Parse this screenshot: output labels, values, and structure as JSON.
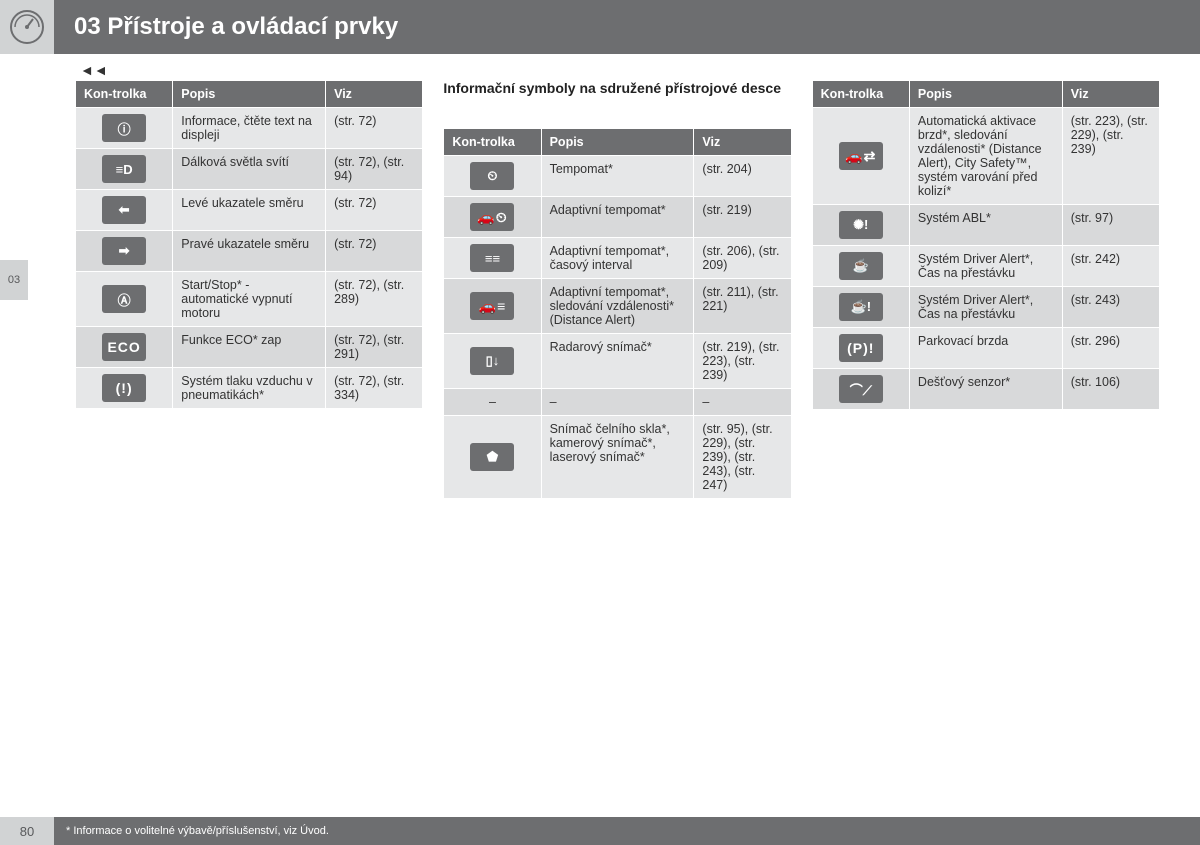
{
  "header": {
    "title": "03 Přístroje a ovládací prvky",
    "side_tab": "03",
    "nav": "◄◄"
  },
  "footer": {
    "page": "80",
    "note": "* Informace o volitelné výbavě/příslušenství, viz Úvod."
  },
  "columns": {
    "headers": {
      "c1": "Kon-trolka",
      "c2": "Popis",
      "c3": "Viz"
    },
    "left": {
      "title": "",
      "rows": [
        {
          "icon": "ⓘ",
          "desc": "Informace, čtěte text na displeji",
          "ref": "(str. 72)"
        },
        {
          "icon": "≡D",
          "desc": "Dálková světla svítí",
          "ref": "(str. 72), (str. 94)"
        },
        {
          "icon": "⬅",
          "desc": "Levé ukazatele směru",
          "ref": "(str. 72)"
        },
        {
          "icon": "➡",
          "desc": "Pravé ukazatele směru",
          "ref": "(str. 72)"
        },
        {
          "icon": "Ⓐ",
          "desc": "Start/Stop* - automatické vypnutí motoru",
          "ref": "(str. 72), (str. 289)"
        },
        {
          "icon": "ECO",
          "desc": "Funkce ECO* zap",
          "ref": "(str. 72), (str. 291)"
        },
        {
          "icon": "(!)",
          "desc": "Systém tlaku vzduchu v pneumatikách*",
          "ref": "(str. 72), (str. 334)"
        }
      ]
    },
    "middle": {
      "title": "Informační symboly na sdružené přístrojové desce",
      "rows": [
        {
          "icon": "⏲",
          "desc": "Tempomat*",
          "ref": "(str. 204)"
        },
        {
          "icon": "🚗⏲",
          "desc": "Adaptivní tempomat*",
          "ref": "(str. 219)"
        },
        {
          "icon": "≡≡",
          "desc": "Adaptivní tempomat*, časový interval",
          "ref": "(str. 206), (str. 209)"
        },
        {
          "icon": "🚗≡",
          "desc": "Adaptivní tempomat*, sledování vzdálenosti* (Distance Alert)",
          "ref": "(str. 211), (str. 221)"
        },
        {
          "icon": "▯↓",
          "desc": "Radarový snímač*",
          "ref": "(str. 219), (str. 223), (str. 239)"
        },
        {
          "icon": "–",
          "desc": "–",
          "ref": "–",
          "plain": true
        },
        {
          "icon": "⬟",
          "desc": "Snímač čelního skla*, kamerový snímač*, laserový snímač*",
          "ref": "(str. 95), (str. 229), (str. 239), (str. 243), (str. 247)"
        }
      ]
    },
    "right": {
      "title": "",
      "rows": [
        {
          "icon": "🚗⇄",
          "desc": "Automatická aktivace brzd*, sledování vzdálenosti* (Distance Alert), City Safety™, systém varování před kolizí*",
          "ref": "(str. 223), (str. 229), (str. 239)"
        },
        {
          "icon": "✺!",
          "desc": "Systém ABL*",
          "ref": "(str. 97)"
        },
        {
          "icon": "☕",
          "desc": "Systém Driver Alert*, Čas na přestávku",
          "ref": "(str. 242)"
        },
        {
          "icon": "☕!",
          "desc": "Systém Driver Alert*, Čas na přestávku",
          "ref": "(str. 243)"
        },
        {
          "icon": "(P)!",
          "desc": "Parkovací brzda",
          "ref": "(str. 296)"
        },
        {
          "icon": "⌒⟋",
          "desc": "Dešťový senzor*",
          "ref": "(str. 106)"
        }
      ]
    }
  }
}
